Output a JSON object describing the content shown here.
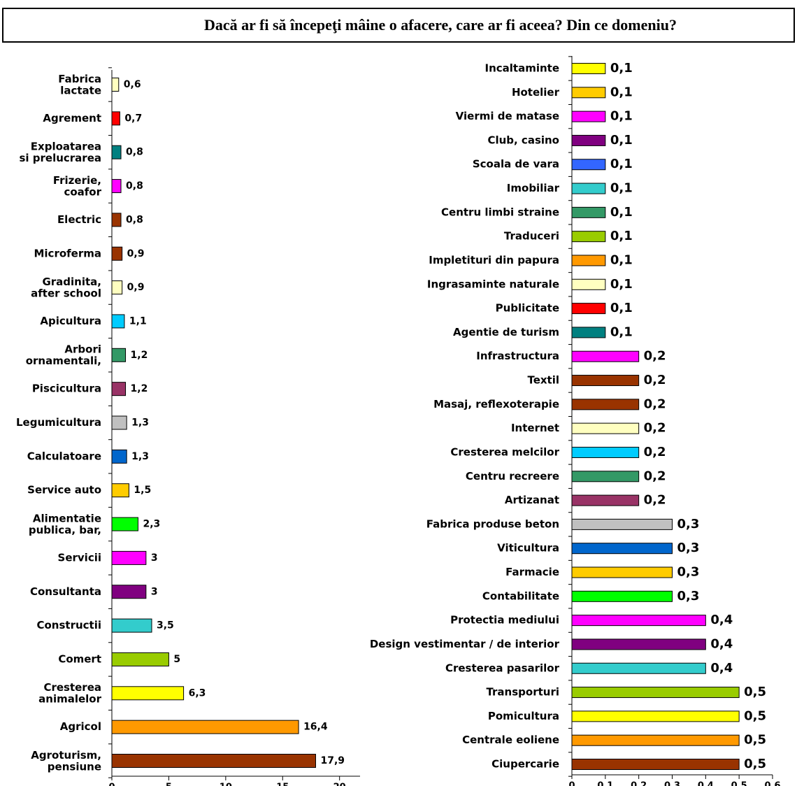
{
  "title": "Dacă ar fi să începeţi mâine o afacere, care ar fi aceea? Din ce domeniu?",
  "chart_data": [
    {
      "type": "bar",
      "orientation": "horizontal",
      "categories": [
        "Fabrica\nlactate",
        "Agrement",
        "Exploatarea\nsi prelucrarea",
        "Frizerie,\ncoafor",
        "Electric",
        "Microferma",
        "Gradinita,\nafter school",
        "Apicultura",
        "Arbori\nornamentali,",
        "Piscicultura",
        "Legumicultura",
        "Calculatoare",
        "Service auto",
        "Alimentatie\npublica, bar,",
        "Servicii",
        "Consultanta",
        "Constructii",
        "Comert",
        "Cresterea\nanimalelor",
        "Agricol",
        "Agroturism,\npensiune"
      ],
      "values": [
        0.6,
        0.7,
        0.8,
        0.8,
        0.8,
        0.9,
        0.9,
        1.1,
        1.2,
        1.2,
        1.3,
        1.3,
        1.5,
        2.3,
        3,
        3,
        3.5,
        5,
        6.3,
        16.4,
        17.9
      ],
      "value_labels": [
        "0,6",
        "0,7",
        "0,8",
        "0,8",
        "0,8",
        "0,9",
        "0,9",
        "1,1",
        "1,2",
        "1,2",
        "1,3",
        "1,3",
        "1,5",
        "2,3",
        "3",
        "3",
        "3,5",
        "5",
        "6,3",
        "16,4",
        "17,9"
      ],
      "colors": [
        "#ffffc0",
        "#ff0000",
        "#008080",
        "#ff00ff",
        "#993300",
        "#993300",
        "#ffffc0",
        "#00ccff",
        "#339966",
        "#993366",
        "#c0c0c0",
        "#0066cc",
        "#ffcc00",
        "#00ff00",
        "#ff00ff",
        "#800080",
        "#33cccc",
        "#99cc00",
        "#ffff00",
        "#ff9900",
        "#993300"
      ],
      "xlim": [
        0,
        21.8
      ],
      "xticks": [
        0,
        5,
        10,
        15,
        20
      ]
    },
    {
      "type": "bar",
      "orientation": "horizontal",
      "categories": [
        "Incaltaminte",
        "Hotelier",
        "Viermi de matase",
        "Club, casino",
        "Scoala de vara",
        "Imobiliar",
        "Centru limbi straine",
        "Traduceri",
        "Impletituri din papura",
        "Ingrasaminte naturale",
        "Publicitate",
        "Agentie de turism",
        "Infrastructura",
        "Textil",
        "Masaj, reflexoterapie",
        "Internet",
        "Cresterea melcilor",
        "Centru recreere",
        "Artizanat",
        "Fabrica produse beton",
        "Viticultura",
        "Farmacie",
        "Contabilitate",
        "Protectia mediului",
        "Design vestimentar / de interior",
        "Cresterea pasarilor",
        "Transporturi",
        "Pomicultura",
        "Centrale eoliene",
        "Ciupercarie"
      ],
      "values": [
        0.1,
        0.1,
        0.1,
        0.1,
        0.1,
        0.1,
        0.1,
        0.1,
        0.1,
        0.1,
        0.1,
        0.1,
        0.2,
        0.2,
        0.2,
        0.2,
        0.2,
        0.2,
        0.2,
        0.3,
        0.3,
        0.3,
        0.3,
        0.4,
        0.4,
        0.4,
        0.5,
        0.5,
        0.5,
        0.5
      ],
      "value_labels": [
        "0,1",
        "0,1",
        "0,1",
        "0,1",
        "0,1",
        "0,1",
        "0,1",
        "0,1",
        "0,1",
        "0,1",
        "0,1",
        "0,1",
        "0,2",
        "0,2",
        "0,2",
        "0,2",
        "0,2",
        "0,2",
        "0,2",
        "0,3",
        "0,3",
        "0,3",
        "0,3",
        "0,4",
        "0,4",
        "0,4",
        "0,5",
        "0,5",
        "0,5",
        "0,5"
      ],
      "colors": [
        "#ffff00",
        "#ffcc00",
        "#ff00ff",
        "#800080",
        "#3366ff",
        "#33cccc",
        "#339966",
        "#99cc00",
        "#ff9900",
        "#ffffc0",
        "#ff0000",
        "#008080",
        "#ff00ff",
        "#993300",
        "#993300",
        "#ffffc0",
        "#00ccff",
        "#339966",
        "#993366",
        "#c0c0c0",
        "#0066cc",
        "#ffcc00",
        "#00ff00",
        "#ff00ff",
        "#800080",
        "#33cccc",
        "#99cc00",
        "#ffff00",
        "#ff9900",
        "#993300"
      ],
      "xlim": [
        0,
        0.6
      ],
      "xticks": [
        0,
        0.1,
        0.2,
        0.3,
        0.4,
        0.5,
        0.6
      ]
    }
  ]
}
